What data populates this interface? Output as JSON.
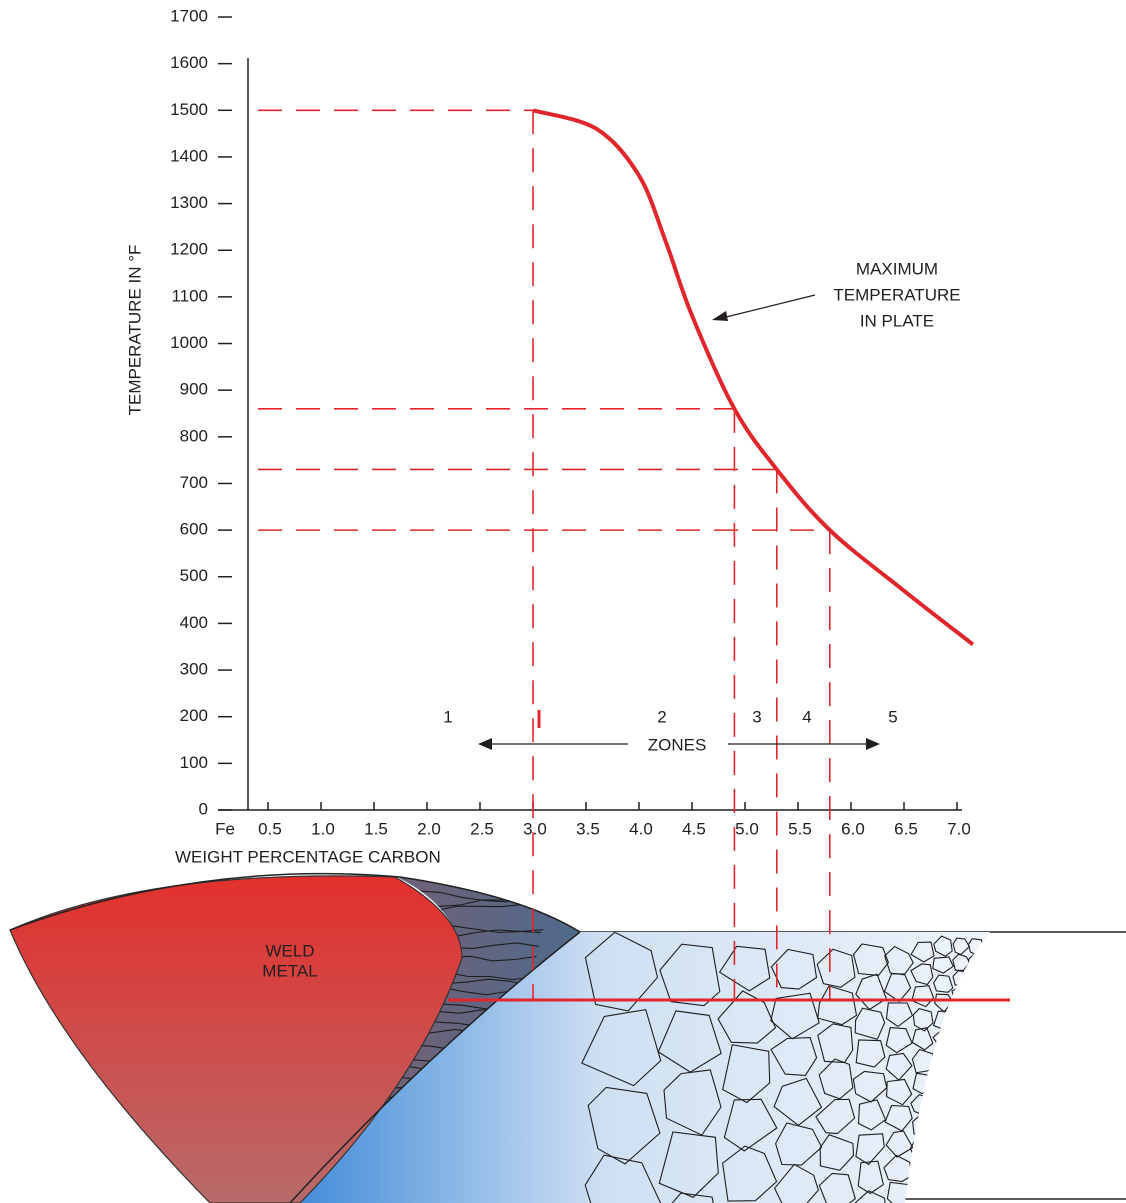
{
  "chart_data": {
    "type": "line",
    "y_label": "TEMPERATURE IN °F",
    "x_label": "WEIGHT PERCENTAGE CARBON",
    "xlim": [
      0,
      7.0
    ],
    "ylim": [
      0,
      1700
    ],
    "xticks": [
      {
        "value": 0,
        "label": "Fe"
      },
      0.5,
      {
        "value": 1,
        "label": "1.0"
      },
      1.5,
      {
        "value": 2,
        "label": "2.0"
      },
      2.5,
      {
        "value": 3,
        "label": "3.0"
      },
      3.5,
      {
        "value": 4,
        "label": "4.0"
      },
      4.5,
      {
        "value": 5,
        "label": "5.0"
      },
      5.5,
      {
        "value": 6,
        "label": "6.0"
      },
      6.5,
      {
        "value": 7,
        "label": "7.0"
      }
    ],
    "yticks": [
      0,
      100,
      200,
      300,
      400,
      500,
      600,
      700,
      800,
      900,
      1000,
      1100,
      1200,
      1300,
      1400,
      1500,
      1600,
      1700
    ],
    "x": [
      3.0,
      3.6,
      4.0,
      4.25,
      4.5,
      4.9,
      5.3,
      5.8,
      6.5,
      7.15
    ],
    "series": [
      {
        "color": "#e3262b",
        "values": [
          1500,
          1460,
          1360,
          1220,
          1060,
          860,
          730,
          600,
          470,
          355
        ]
      }
    ],
    "reference_lines": [
      {
        "x": 3.0,
        "y": 1500
      },
      {
        "x": 4.9,
        "y": 860
      },
      {
        "x": 5.3,
        "y": 730
      },
      {
        "x": 5.8,
        "y": 600
      }
    ],
    "reference_color": "#e3262b",
    "zones": [
      "1",
      "2",
      "3",
      "4",
      "5"
    ],
    "zones_label": "ZONES",
    "annotation": [
      "MAXIMUM",
      "TEMPERATURE",
      "IN PLATE"
    ],
    "weld_label": [
      "WELD",
      "METAL"
    ]
  }
}
